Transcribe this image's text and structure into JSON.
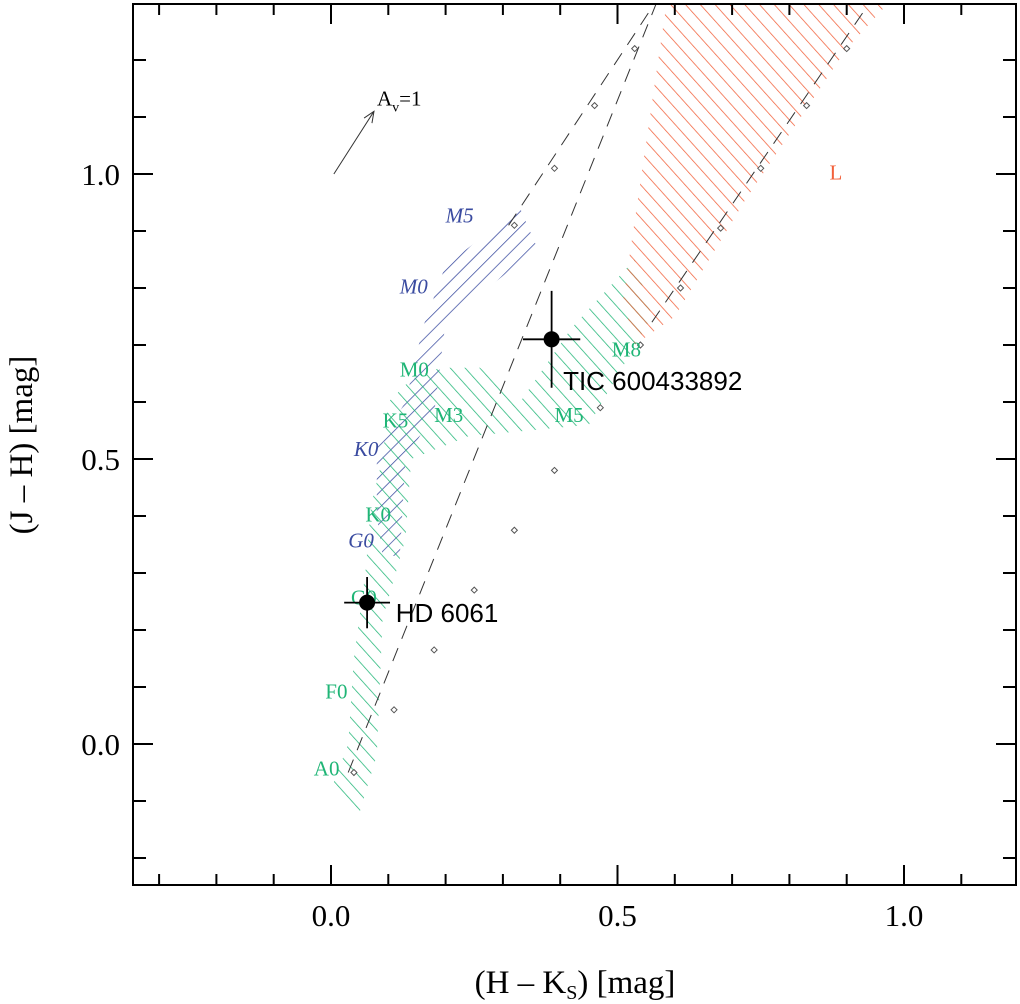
{
  "chart_data": {
    "type": "scatter",
    "xlabel_main": "(H – K",
    "xlabel_sub": "S",
    "xlabel_tail": ") [mag]",
    "ylabel": "(J – H) [mag]",
    "xlim": [
      -0.35,
      1.2
    ],
    "ylim": [
      -0.25,
      1.3
    ],
    "xticks": [
      0.0,
      0.5,
      1.0
    ],
    "xtick_labels": [
      "0.0",
      "0.5",
      "1.0"
    ],
    "xminor_step": 0.1,
    "yticks": [
      0.0,
      0.5,
      1.0
    ],
    "ytick_labels": [
      "0.0",
      "0.5",
      "1.0"
    ],
    "yminor_step": 0.1,
    "colors": {
      "giant": "#3a4ba0",
      "dwarf": "#1fb576",
      "ldwarf": "#f2603a",
      "reddening": "#555555"
    },
    "reddening_vector": {
      "label_main": "A",
      "label_sub": "v",
      "label_tail": "=1",
      "start": [
        0.005,
        1.0
      ],
      "end": [
        0.075,
        1.11
      ]
    },
    "reddening_lines": [
      {
        "name": "upper-reddening-line",
        "points": [
          [
            0.03,
            -0.05
          ],
          [
            0.58,
            1.33
          ]
        ]
      },
      {
        "name": "lower-reddening-line",
        "points": [
          [
            0.31,
            0.91
          ],
          [
            0.585,
            1.33
          ]
        ]
      },
      {
        "name": "ctts-reddening-line",
        "points": [
          [
            0.56,
            0.74
          ],
          [
            0.96,
            1.33
          ]
        ]
      }
    ],
    "reddening_markers": [
      [
        0.04,
        -0.05
      ],
      [
        0.11,
        0.06
      ],
      [
        0.18,
        0.165
      ],
      [
        0.25,
        0.27
      ],
      [
        0.32,
        0.375
      ],
      [
        0.39,
        0.48
      ],
      [
        0.47,
        0.59
      ],
      [
        0.54,
        0.7
      ],
      [
        0.32,
        0.91
      ],
      [
        0.39,
        1.01
      ],
      [
        0.46,
        1.12
      ],
      [
        0.53,
        1.22
      ],
      [
        0.61,
        0.8
      ],
      [
        0.68,
        0.905
      ],
      [
        0.75,
        1.01
      ],
      [
        0.83,
        1.12
      ],
      [
        0.9,
        1.22
      ]
    ],
    "regions": [
      {
        "name": "giant-branch",
        "color_key": "giant",
        "angle": 45,
        "polygon": [
          [
            0.09,
            0.33
          ],
          [
            0.12,
            0.33
          ],
          [
            0.13,
            0.5
          ],
          [
            0.18,
            0.58
          ],
          [
            0.2,
            0.74
          ],
          [
            0.36,
            0.87
          ],
          [
            0.33,
            0.94
          ],
          [
            0.2,
            0.84
          ],
          [
            0.16,
            0.73
          ],
          [
            0.13,
            0.6
          ],
          [
            0.08,
            0.52
          ],
          [
            0.08,
            0.4
          ]
        ]
      },
      {
        "name": "dwarf-branch",
        "color_key": "dwarf",
        "angle": -42,
        "polygon": [
          [
            0.0,
            -0.08
          ],
          [
            0.05,
            -0.12
          ],
          [
            0.08,
            -0.02
          ],
          [
            0.09,
            0.22
          ],
          [
            0.13,
            0.36
          ],
          [
            0.14,
            0.5
          ],
          [
            0.24,
            0.54
          ],
          [
            0.45,
            0.56
          ],
          [
            0.56,
            0.75
          ],
          [
            0.53,
            0.85
          ],
          [
            0.42,
            0.73
          ],
          [
            0.33,
            0.6
          ],
          [
            0.26,
            0.66
          ],
          [
            0.19,
            0.66
          ],
          [
            0.14,
            0.64
          ],
          [
            0.1,
            0.6
          ],
          [
            0.09,
            0.5
          ],
          [
            0.07,
            0.42
          ],
          [
            0.06,
            0.3
          ],
          [
            0.04,
            0.15
          ],
          [
            0.03,
            0.0
          ]
        ]
      },
      {
        "name": "l-dwarf-region",
        "color_key": "ldwarf",
        "angle": -42,
        "polygon": [
          [
            0.51,
            0.78
          ],
          [
            0.59,
            1.33
          ],
          [
            1.0,
            1.33
          ],
          [
            0.9,
            1.22
          ],
          [
            0.72,
            0.95
          ],
          [
            0.6,
            0.75
          ],
          [
            0.53,
            0.7
          ]
        ]
      }
    ],
    "branch_labels": [
      {
        "text": "M5",
        "x": 0.2,
        "y": 0.915,
        "color_key": "giant",
        "italic": true
      },
      {
        "text": "M0",
        "x": 0.12,
        "y": 0.79,
        "color_key": "giant",
        "italic": true
      },
      {
        "text": "K0",
        "x": 0.04,
        "y": 0.505,
        "color_key": "giant",
        "italic": true
      },
      {
        "text": "G0",
        "x": 0.03,
        "y": 0.345,
        "color_key": "giant",
        "italic": true
      },
      {
        "text": "M0",
        "x": 0.12,
        "y": 0.645,
        "color_key": "dwarf",
        "italic": false
      },
      {
        "text": "K5",
        "x": 0.09,
        "y": 0.555,
        "color_key": "dwarf",
        "italic": false
      },
      {
        "text": "M3",
        "x": 0.18,
        "y": 0.565,
        "color_key": "dwarf",
        "italic": false
      },
      {
        "text": "M5",
        "x": 0.39,
        "y": 0.565,
        "color_key": "dwarf",
        "italic": false
      },
      {
        "text": "M8",
        "x": 0.49,
        "y": 0.68,
        "color_key": "dwarf",
        "italic": false
      },
      {
        "text": "K0",
        "x": 0.06,
        "y": 0.39,
        "color_key": "dwarf",
        "italic": false
      },
      {
        "text": "G0",
        "x": 0.035,
        "y": 0.245,
        "color_key": "dwarf",
        "italic": false
      },
      {
        "text": "F0",
        "x": -0.01,
        "y": 0.08,
        "color_key": "dwarf",
        "italic": false
      },
      {
        "text": "A0",
        "x": -0.03,
        "y": -0.055,
        "color_key": "dwarf",
        "italic": false
      },
      {
        "text": "L",
        "x": 0.87,
        "y": 0.99,
        "color_key": "ldwarf",
        "italic": false
      }
    ],
    "objects": [
      {
        "name": "HD 6061",
        "x": 0.063,
        "y": 0.248,
        "xerr": 0.04,
        "yerr": 0.045,
        "label_dx": 0.05,
        "label_dy": -0.02
      },
      {
        "name": "TIC 600433892",
        "x": 0.385,
        "y": 0.71,
        "xerr": 0.05,
        "yerr": 0.085,
        "label_dx": 0.02,
        "label_dy": -0.075
      }
    ]
  }
}
